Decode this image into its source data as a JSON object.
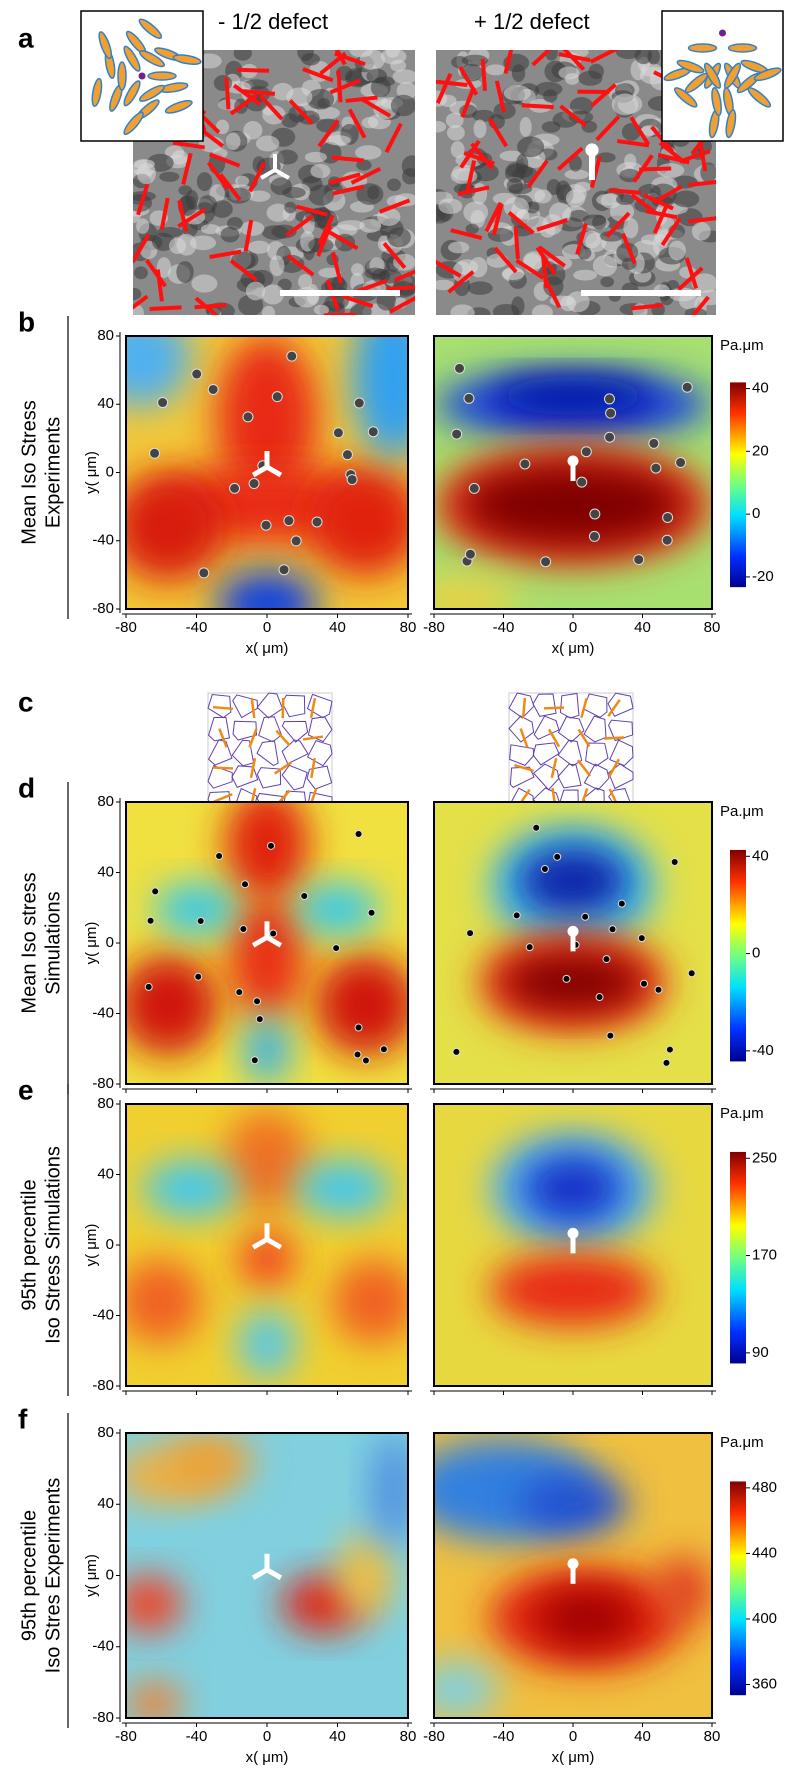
{
  "panel_a": {
    "label": "a",
    "left_title": "- 1/2 defect",
    "right_title": "+ 1/2 defect"
  },
  "panel_c": {
    "label": "c"
  },
  "x_axis": {
    "label": "x( μm)",
    "ticks": [
      -80,
      -40,
      0,
      40,
      80
    ]
  },
  "y_axis": {
    "label": "y( μm)",
    "ticks": [
      80,
      40,
      0,
      -40,
      -80
    ]
  },
  "panels": [
    {
      "label": "b",
      "row_label": [
        "Mean Iso Stress",
        "Experiments"
      ],
      "colorbar": {
        "unit": "Pa.μm",
        "ticks": [
          40,
          20,
          0,
          -20
        ]
      }
    },
    {
      "label": "d",
      "row_label": [
        "Mean Iso stress",
        "Simulations"
      ],
      "colorbar": {
        "unit": "Pa.μm",
        "ticks": [
          40,
          0,
          -40
        ]
      }
    },
    {
      "label": "e",
      "row_label": [
        "95th percentile",
        "Iso Stress  Simulations"
      ],
      "colorbar": {
        "unit": "Pa.μm",
        "ticks": [
          250,
          170,
          90
        ]
      }
    },
    {
      "label": "f",
      "row_label": [
        "95th percentile",
        "Iso Stres Experiments"
      ],
      "colorbar": {
        "unit": "Pa.μm",
        "ticks": [
          480,
          440,
          400,
          360
        ]
      }
    }
  ]
}
